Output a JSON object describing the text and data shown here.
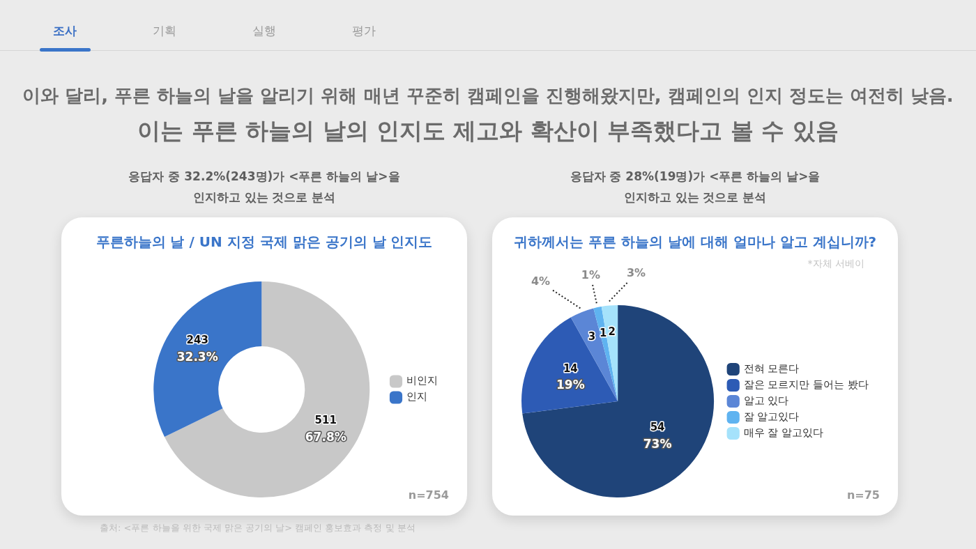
{
  "chart_data": [
    {
      "type": "other",
      "title": "이와 달리, 푸른 하늘의 날을 알리기 위해 매년 꾸준히 캠페인을 진행해왔지만, 캠페인의 인지 정도는 여전히 낮음.",
      "subtitle": "이는 푸른 하늘의 날의 인지도 제고와 확산이 부족했다고 볼 수 있음",
      "annotations": [
        "조사",
        "기획",
        "실행",
        "평가",
        "출처:  <푸른 하늘을 위한 국제 맑은 공기의 날> 캠페인 홍보효과 측정 및 분석"
      ]
    },
    {
      "type": "donut",
      "subtitle": "응답자 중 32.2%(243명)가 <푸른 하늘의 날>을 인지하고 있는 것으로 분석",
      "title": "푸른하늘의 날 / UN 지정 국제 맑은 공기의 날 인지도",
      "categories": [
        "비인지",
        "인지"
      ],
      "values": [
        511,
        243
      ],
      "colors": [
        "#c8c8c8",
        "#3a75c9"
      ],
      "value_labels": [
        "511\n67.8%",
        "243\n32.3%"
      ],
      "legend": "right",
      "annotations": [
        "n=754"
      ]
    },
    {
      "type": "pie",
      "subtitle": "응답자 중 28%(19명)가 <푸른 하늘의 날>을 인지하고 있는 것으로 분석",
      "title": "귀하께서는 푸른 하늘의 날에 대해 얼마나 알고 계십니까?",
      "categories": [
        "전혀 모른다",
        "잘은 모르지만 들어는 봤다",
        "알고 있다",
        "잘 알고있다",
        "매우 잘 알고있다"
      ],
      "values": [
        54,
        14,
        3,
        1,
        2
      ],
      "colors": [
        "#1f4479",
        "#2d5bb5",
        "#5b86d6",
        "#5fb3f0",
        "#a5e2fb"
      ],
      "value_labels": [
        "54\n73%",
        "14\n19%",
        "3\n4%",
        "1\n1%",
        "2\n3%"
      ],
      "legend": "right",
      "annotations": [
        "*자체 서베이",
        "n=75"
      ]
    }
  ]
}
